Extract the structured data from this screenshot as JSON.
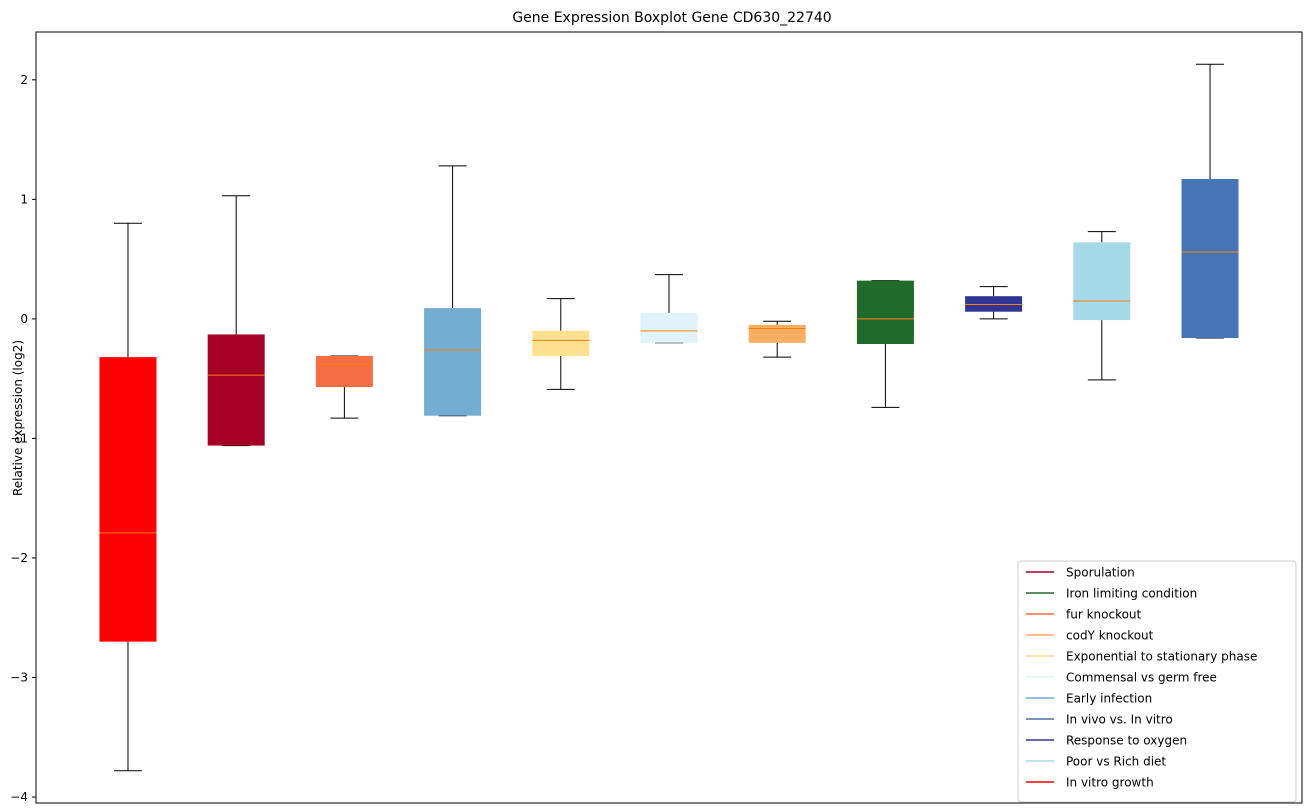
{
  "chart_data": {
    "type": "boxplot",
    "title": "Gene Expression Boxplot Gene CD630_22740",
    "xlabel": "",
    "ylabel": "Relative expression (log2)",
    "ylim": [
      -4.05,
      2.4
    ],
    "yticks": [
      -4,
      -3,
      -2,
      -1,
      0,
      1,
      2
    ],
    "ytick_labels": [
      "−4",
      "−3",
      "−2",
      "−1",
      "0",
      "1",
      "2"
    ],
    "median_color": "#ff7f0e",
    "boxes": [
      {
        "series": "In vitro growth",
        "color": "#ff0000",
        "whisker_low": -3.78,
        "q1": -2.7,
        "median": -1.79,
        "q3": -0.32,
        "whisker_high": 0.8
      },
      {
        "series": "Sporulation",
        "color": "#a50026",
        "whisker_low": -1.06,
        "q1": -1.06,
        "median": -0.47,
        "q3": -0.13,
        "whisker_high": 1.03
      },
      {
        "series": "fur knockout",
        "color": "#f46d43",
        "whisker_low": -0.83,
        "q1": -0.57,
        "median": -0.38,
        "q3": -0.31,
        "whisker_high": -0.31
      },
      {
        "series": "Early infection",
        "color": "#74add1",
        "whisker_low": -0.81,
        "q1": -0.81,
        "median": -0.26,
        "q3": 0.09,
        "whisker_high": 1.28
      },
      {
        "series": "Exponential to stationary phase",
        "color": "#fee090",
        "whisker_low": -0.59,
        "q1": -0.31,
        "median": -0.18,
        "q3": -0.1,
        "whisker_high": 0.17
      },
      {
        "series": "Commensal vs germ free",
        "color": "#e0f3f8",
        "whisker_low": -0.2,
        "q1": -0.2,
        "median": -0.1,
        "q3": 0.05,
        "whisker_high": 0.37
      },
      {
        "series": "codY knockout",
        "color": "#fdae61",
        "whisker_low": -0.32,
        "q1": -0.2,
        "median": -0.08,
        "q3": -0.05,
        "whisker_high": -0.02
      },
      {
        "series": "Iron limiting condition",
        "color": "#1f6b2c",
        "whisker_low": -0.74,
        "q1": -0.21,
        "median": 0.0,
        "q3": 0.32,
        "whisker_high": 0.32
      },
      {
        "series": "Response to oxygen",
        "color": "#313695",
        "whisker_low": 0.0,
        "q1": 0.06,
        "median": 0.12,
        "q3": 0.19,
        "whisker_high": 0.27
      },
      {
        "series": "Poor vs Rich diet",
        "color": "#a6d9e8",
        "whisker_low": -0.51,
        "q1": -0.01,
        "median": 0.15,
        "q3": 0.64,
        "whisker_high": 0.73
      },
      {
        "series": "In vivo vs. In vitro",
        "color": "#4575b4",
        "whisker_low": -0.16,
        "q1": -0.16,
        "median": 0.56,
        "q3": 1.17,
        "whisker_high": 2.13
      }
    ],
    "legend": {
      "placement": "lower-right",
      "entries": [
        {
          "label": "Sporulation",
          "color": "#a50026"
        },
        {
          "label": "Iron limiting condition",
          "color": "#1f6b2c"
        },
        {
          "label": "fur knockout",
          "color": "#f46d43"
        },
        {
          "label": "codY knockout",
          "color": "#fdae61"
        },
        {
          "label": "Exponential to stationary phase",
          "color": "#fee090"
        },
        {
          "label": "Commensal vs germ free",
          "color": "#e0f3f8"
        },
        {
          "label": "Early infection",
          "color": "#74add1"
        },
        {
          "label": "In vivo vs. In vitro",
          "color": "#4575b4"
        },
        {
          "label": "Response to oxygen",
          "color": "#313695"
        },
        {
          "label": "Poor vs Rich diet",
          "color": "#a6d9e8"
        },
        {
          "label": "In vitro growth",
          "color": "#ff0000"
        }
      ]
    }
  }
}
